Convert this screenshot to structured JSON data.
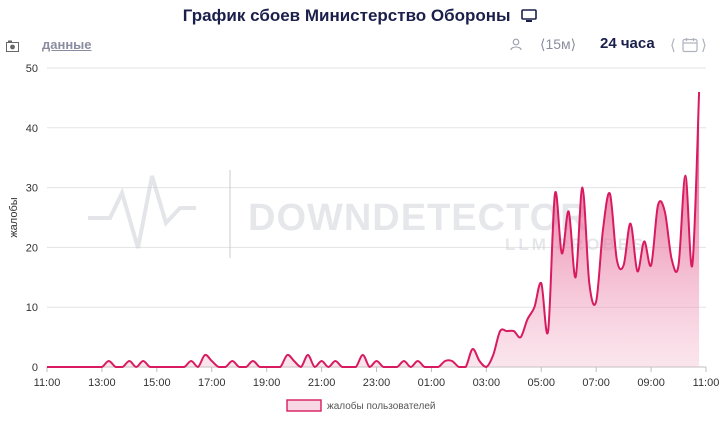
{
  "header": {
    "title": "График сбоев Министерство Обороны",
    "data_link": "данные",
    "interval": "⟨15м⟩",
    "period": "24 часа"
  },
  "icons": {
    "title": "monitor-icon",
    "left": "camera-icon",
    "user": "user-icon",
    "calendar": "calendar-icon"
  },
  "colors": {
    "line": "#d81b60",
    "fill": "#e0407a",
    "grid": "#e3e3e3",
    "title": "#1b1f4b"
  },
  "watermark": {
    "brand": "DOWNDETECTOR",
    "sub": "LLM PROBES"
  },
  "chart_data": {
    "type": "area",
    "title": "",
    "xlabel": "",
    "ylabel": "жалобы",
    "ylim": [
      0,
      50
    ],
    "yticks": [
      0,
      10,
      20,
      30,
      40,
      50
    ],
    "xlim": [
      "11:00",
      "11:00"
    ],
    "xticks": [
      "11:00",
      "13:00",
      "15:00",
      "17:00",
      "19:00",
      "21:00",
      "23:00",
      "01:00",
      "03:00",
      "05:00",
      "07:00",
      "09:00",
      "11:00"
    ],
    "legend": "bottom-center",
    "grid": true,
    "series": [
      {
        "name": "жалобы пользователей",
        "points": [
          [
            "11:00",
            0
          ],
          [
            "11:15",
            0
          ],
          [
            "11:30",
            0
          ],
          [
            "11:45",
            0
          ],
          [
            "12:00",
            0
          ],
          [
            "12:15",
            0
          ],
          [
            "12:30",
            0
          ],
          [
            "12:45",
            0
          ],
          [
            "13:00",
            0
          ],
          [
            "13:15",
            1
          ],
          [
            "13:30",
            0
          ],
          [
            "13:45",
            0
          ],
          [
            "14:00",
            1
          ],
          [
            "14:15",
            0
          ],
          [
            "14:30",
            1
          ],
          [
            "14:45",
            0
          ],
          [
            "15:00",
            0
          ],
          [
            "15:15",
            0
          ],
          [
            "15:30",
            0
          ],
          [
            "15:45",
            0
          ],
          [
            "16:00",
            0
          ],
          [
            "16:15",
            1
          ],
          [
            "16:30",
            0
          ],
          [
            "16:45",
            2
          ],
          [
            "17:00",
            1
          ],
          [
            "17:15",
            0
          ],
          [
            "17:30",
            0
          ],
          [
            "17:45",
            1
          ],
          [
            "18:00",
            0
          ],
          [
            "18:15",
            0
          ],
          [
            "18:30",
            1
          ],
          [
            "18:45",
            0
          ],
          [
            "19:00",
            0
          ],
          [
            "19:15",
            0
          ],
          [
            "19:30",
            0
          ],
          [
            "19:45",
            2
          ],
          [
            "20:00",
            1
          ],
          [
            "20:15",
            0
          ],
          [
            "20:30",
            2
          ],
          [
            "20:45",
            0
          ],
          [
            "21:00",
            1
          ],
          [
            "21:15",
            0
          ],
          [
            "21:30",
            1
          ],
          [
            "21:45",
            0
          ],
          [
            "22:00",
            0
          ],
          [
            "22:15",
            0
          ],
          [
            "22:30",
            2
          ],
          [
            "22:45",
            0
          ],
          [
            "23:00",
            1
          ],
          [
            "23:15",
            0
          ],
          [
            "23:30",
            0
          ],
          [
            "23:45",
            0
          ],
          [
            "00:00",
            1
          ],
          [
            "00:15",
            0
          ],
          [
            "00:30",
            1
          ],
          [
            "00:45",
            0
          ],
          [
            "01:00",
            0
          ],
          [
            "01:15",
            0
          ],
          [
            "01:30",
            1
          ],
          [
            "01:45",
            1
          ],
          [
            "02:00",
            0
          ],
          [
            "02:15",
            0
          ],
          [
            "02:30",
            3
          ],
          [
            "02:45",
            1
          ],
          [
            "03:00",
            0
          ],
          [
            "03:15",
            2
          ],
          [
            "03:30",
            6
          ],
          [
            "03:45",
            6
          ],
          [
            "04:00",
            6
          ],
          [
            "04:15",
            5
          ],
          [
            "04:30",
            8
          ],
          [
            "04:45",
            10
          ],
          [
            "05:00",
            14
          ],
          [
            "05:15",
            6
          ],
          [
            "05:30",
            29
          ],
          [
            "05:45",
            19
          ],
          [
            "06:00",
            26
          ],
          [
            "06:15",
            15
          ],
          [
            "06:30",
            30
          ],
          [
            "06:45",
            14
          ],
          [
            "07:00",
            11
          ],
          [
            "07:15",
            23
          ],
          [
            "07:30",
            29
          ],
          [
            "07:45",
            18
          ],
          [
            "08:00",
            17
          ],
          [
            "08:15",
            24
          ],
          [
            "08:30",
            16
          ],
          [
            "08:45",
            21
          ],
          [
            "09:00",
            17
          ],
          [
            "09:15",
            27
          ],
          [
            "09:30",
            26
          ],
          [
            "09:45",
            18
          ],
          [
            "10:00",
            17
          ],
          [
            "10:15",
            32
          ],
          [
            "10:30",
            17
          ],
          [
            "10:45",
            46
          ]
        ]
      }
    ]
  }
}
